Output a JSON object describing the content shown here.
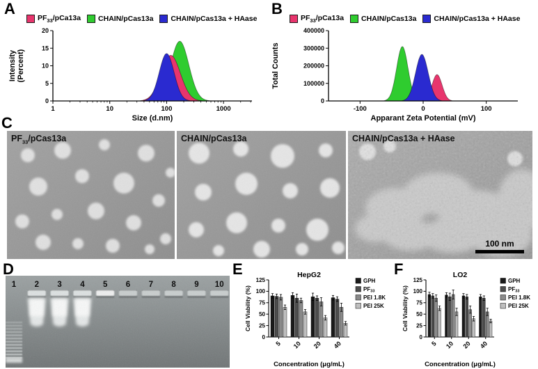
{
  "panels": {
    "A": {
      "label": "A"
    },
    "B": {
      "label": "B"
    },
    "C": {
      "label": "C"
    },
    "D": {
      "label": "D"
    },
    "E": {
      "label": "E"
    },
    "F": {
      "label": "F"
    }
  },
  "legendAB": [
    {
      "segments": [
        {
          "t": "PF"
        },
        {
          "t": "33",
          "sub": true
        },
        {
          "t": "/pCa13a"
        }
      ],
      "color": "#e8356d"
    },
    {
      "segments": [
        {
          "t": "CHAIN/pCas13a"
        }
      ],
      "color": "#2fcc2f"
    },
    {
      "segments": [
        {
          "t": "CHAIN/pCas13a + HAase"
        }
      ],
      "color": "#2a2ad0"
    }
  ],
  "tem": {
    "images": [
      {
        "label_segments": [
          {
            "t": "PF"
          },
          {
            "t": "33",
            "sub": true
          },
          {
            "t": "/pCas13a"
          }
        ]
      },
      {
        "label_segments": [
          {
            "t": "CHAIN/pCas13a"
          }
        ]
      },
      {
        "label_segments": [
          {
            "t": "CHAIN/pCas13a + HAase"
          }
        ],
        "scale_bar": "100 nm"
      }
    ]
  },
  "gel": {
    "lanes": [
      "1",
      "2",
      "3",
      "4",
      "5",
      "6",
      "7",
      "8",
      "9",
      "10"
    ]
  },
  "chart_data": [
    {
      "id": "size-distribution",
      "type": "area",
      "panel": "A",
      "xscale": "log",
      "xlabel": "Size (d.nm)",
      "ylabel_lines": [
        "Intensity",
        "(Percent)"
      ],
      "xlim": [
        1,
        3162
      ],
      "ylim": [
        0,
        20
      ],
      "xticks": [
        1,
        10,
        100,
        1000
      ],
      "yticks": [
        0,
        5,
        10,
        15,
        20
      ],
      "series": [
        {
          "name": "CHAIN/pCas13a",
          "color": "#2fcc2f",
          "peak_x": 170,
          "peak_y": 17,
          "sigma_log": 0.16
        },
        {
          "name": "PF33/pCa13a",
          "color": "#e8356d",
          "peak_x": 118,
          "peak_y": 13,
          "sigma_log": 0.17
        },
        {
          "name": "CHAIN/pCas13a + HAase",
          "color": "#2a2ad0",
          "peak_x": 100,
          "peak_y": 13.5,
          "sigma_log": 0.13
        }
      ]
    },
    {
      "id": "zeta-potential",
      "type": "area",
      "panel": "B",
      "xscale": "linear",
      "xlabel": "Apparant Zeta Potential (mV)",
      "ylabel_lines": [
        "Total Counts"
      ],
      "xlim": [
        -150,
        150
      ],
      "ylim": [
        0,
        400000
      ],
      "xticks": [
        -100,
        0,
        100
      ],
      "yticks": [
        0,
        100000,
        200000,
        300000,
        400000
      ],
      "series": [
        {
          "name": "CHAIN/pCas13a",
          "color": "#2fcc2f",
          "peak_x": -33,
          "peak_y": 310000,
          "sigma": 9
        },
        {
          "name": "PF33/pCa13a",
          "color": "#e8356d",
          "peak_x": 22,
          "peak_y": 150000,
          "sigma": 8
        },
        {
          "name": "CHAIN/pCas13a + HAase",
          "color": "#2a2ad0",
          "peak_x": -2,
          "peak_y": 265000,
          "sigma": 10
        }
      ]
    },
    {
      "id": "hepg2-viability",
      "type": "bar",
      "panel": "E",
      "title": "HepG2",
      "xlabel": "Concentration (μg/mL)",
      "ylabel": "Cell Viability (%)",
      "categories": [
        "5",
        "10",
        "20",
        "40"
      ],
      "ylim": [
        0,
        125
      ],
      "yticks": [
        0,
        25,
        50,
        75,
        100,
        125
      ],
      "series": [
        {
          "name": "GPH",
          "color": "#1a1a1a",
          "values": [
            90,
            91,
            88,
            86
          ],
          "errors": [
            5,
            6,
            8,
            5
          ]
        },
        {
          "name": "PF33",
          "name_segments": [
            {
              "t": "PF"
            },
            {
              "t": "33",
              "sub": true
            }
          ],
          "color": "#4d4d4d",
          "values": [
            89,
            85,
            85,
            83
          ],
          "errors": [
            5,
            9,
            5,
            5
          ]
        },
        {
          "name": "PEI 1.8K",
          "color": "#8a8a8a",
          "values": [
            87,
            80,
            77,
            65
          ],
          "errors": [
            6,
            5,
            9,
            9
          ]
        },
        {
          "name": "PEI 25K",
          "color": "#bfbfbf",
          "values": [
            65,
            55,
            42,
            30
          ],
          "errors": [
            5,
            5,
            5,
            4
          ]
        }
      ]
    },
    {
      "id": "lo2-viability",
      "type": "bar",
      "panel": "F",
      "title": "LO2",
      "xlabel": "Concentration (μg/mL)",
      "ylabel": "Cell Viability (%)",
      "categories": [
        "5",
        "10",
        "20",
        "40"
      ],
      "ylim": [
        0,
        125
      ],
      "yticks": [
        0,
        25,
        50,
        75,
        100,
        125
      ],
      "series": [
        {
          "name": "GPH",
          "color": "#1a1a1a",
          "values": [
            93,
            92,
            90,
            88
          ],
          "errors": [
            5,
            5,
            5,
            5
          ]
        },
        {
          "name": "PF33",
          "name_segments": [
            {
              "t": "PF"
            },
            {
              "t": "33",
              "sub": true
            }
          ],
          "color": "#4d4d4d",
          "values": [
            90,
            88,
            88,
            85
          ],
          "errors": [
            5,
            8,
            5,
            5
          ]
        },
        {
          "name": "PEI 1.8K",
          "color": "#8a8a8a",
          "values": [
            85,
            93,
            60,
            55
          ],
          "errors": [
            7,
            10,
            8,
            8
          ]
        },
        {
          "name": "PEI 25K",
          "color": "#bfbfbf",
          "values": [
            63,
            55,
            40,
            35
          ],
          "errors": [
            5,
            8,
            5,
            4
          ]
        }
      ]
    }
  ]
}
